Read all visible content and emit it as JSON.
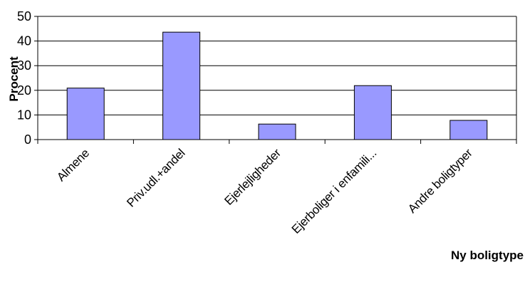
{
  "chart_data": {
    "type": "bar",
    "categories": [
      "Almene",
      "Priv.udl.+andel",
      "Ejerlejligheder",
      "Ejerboliger i enfamili...",
      "Andre boligtyper"
    ],
    "values": [
      20.9,
      43.6,
      6.3,
      21.9,
      7.8
    ],
    "xlabel": "Ny boligtype",
    "ylabel": "Procent",
    "ylim": [
      0,
      50
    ],
    "yticks": [
      0,
      10,
      20,
      30,
      40,
      50
    ],
    "grid": true,
    "bar_color": "#9999ff",
    "bar_edge_color": "#000000"
  }
}
